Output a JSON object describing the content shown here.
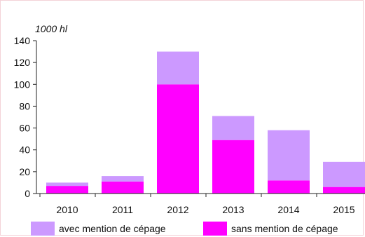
{
  "chart_data": {
    "type": "bar",
    "stacked": true,
    "unit_label": "1000 hl",
    "categories": [
      "2010",
      "2011",
      "2012",
      "2013",
      "2014",
      "2015"
    ],
    "series": [
      {
        "name": "sans mention de cépage",
        "color": "#ff00ff",
        "values": [
          7,
          11,
          100,
          49,
          12,
          6
        ]
      },
      {
        "name": "avec mention de cépage",
        "color": "#cc99ff",
        "values": [
          3,
          5,
          30,
          22,
          46,
          23
        ]
      }
    ],
    "ylim": [
      0,
      140
    ],
    "yticks": [
      0,
      20,
      40,
      60,
      80,
      100,
      120,
      140
    ],
    "grid": false,
    "legend_position": "bottom"
  }
}
